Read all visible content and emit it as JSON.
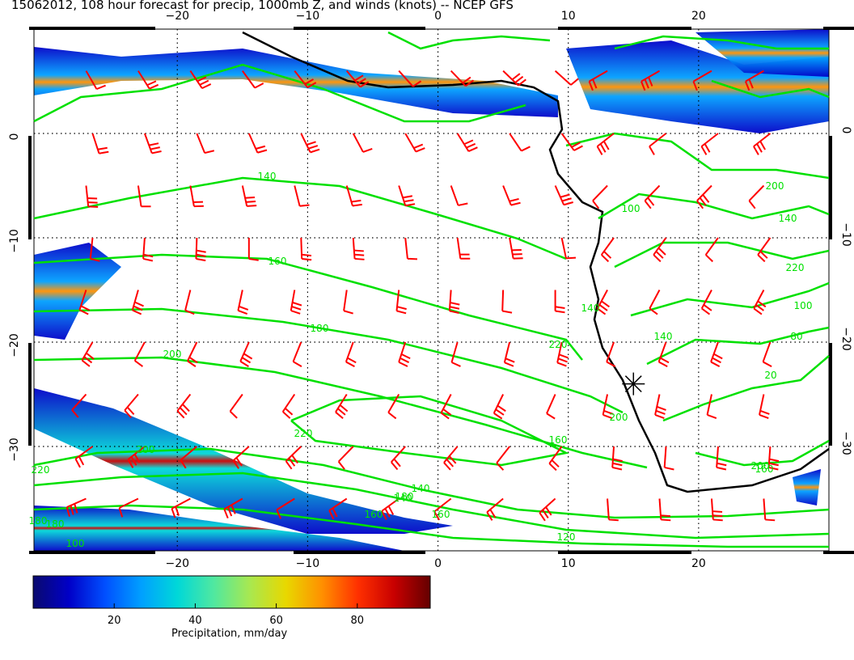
{
  "title": "15062012, 108 hour forecast for precip, 1000mb Z, and winds (knots) -- NCEP GFS",
  "map": {
    "lon_range": [
      -31,
      30
    ],
    "lat_range": [
      -40,
      10
    ],
    "lon_ticks": [
      -20,
      -10,
      0,
      10,
      20
    ],
    "lat_ticks": [
      0,
      -10,
      -20,
      -30
    ],
    "lon_tick_labels": [
      "−20",
      "−10",
      "0",
      "10",
      "20"
    ],
    "lat_tick_labels": [
      "0",
      "−10",
      "−20",
      "−30"
    ],
    "grid": "dotted",
    "station_marker": {
      "lon": 15,
      "lat": -24
    }
  },
  "contour_labels": [
    "140",
    "160",
    "180",
    "200",
    "220",
    "140",
    "160",
    "180",
    "200",
    "220",
    "100",
    "80",
    "20",
    "140",
    "160",
    "180",
    "200",
    "220",
    "100",
    "140",
    "160",
    "180",
    "200",
    "220",
    "140",
    "120",
    "100",
    "140",
    "200",
    "160"
  ],
  "colorbar": {
    "label": "Precipitation, mm/day",
    "tick_labels": [
      "20",
      "40",
      "60",
      "80"
    ],
    "range": [
      0,
      98
    ],
    "ticks": [
      20,
      40,
      60,
      80
    ],
    "colors": [
      "#0a0a6e",
      "#0000c8",
      "#0050ff",
      "#00a0ff",
      "#00d8d8",
      "#50e8a0",
      "#a8e850",
      "#e8d800",
      "#ff9000",
      "#ff3000",
      "#c80000",
      "#640000"
    ]
  },
  "colors": {
    "contours": "#00e000",
    "barbs": "#ff0000",
    "coast": "#000000"
  }
}
